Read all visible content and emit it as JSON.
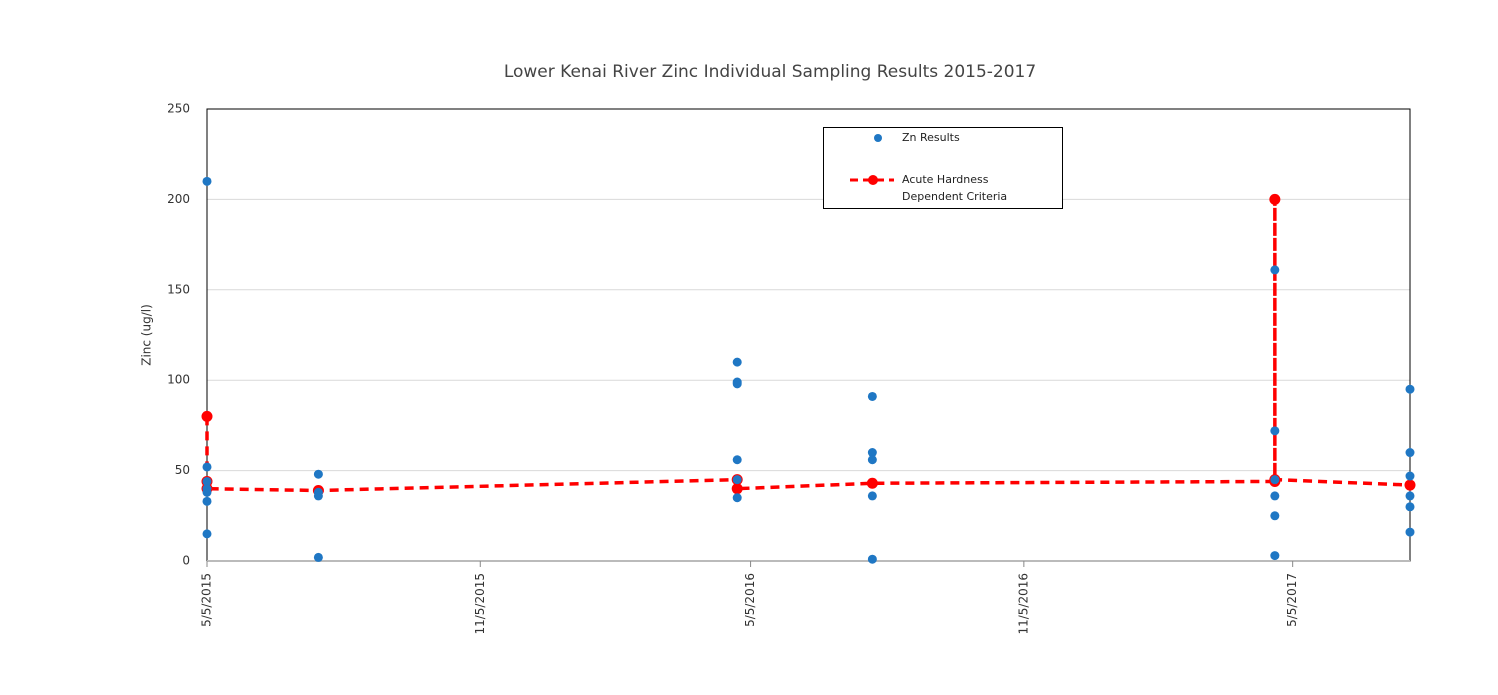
{
  "chart_data": {
    "type": "scatter",
    "title": "Lower Kenai River Zinc Individual Sampling Results 2015-2017",
    "y_label": "Zinc (ug/l)",
    "xlim": [
      "2015-05-05",
      "2017-07-23"
    ],
    "xticks": [
      {
        "value": "2015-05-05",
        "label": "5/5/2015"
      },
      {
        "value": "2015-11-05",
        "label": "11/5/2015"
      },
      {
        "value": "2016-05-05",
        "label": "5/5/2016"
      },
      {
        "value": "2016-11-05",
        "label": "11/5/2016"
      },
      {
        "value": "2017-05-05",
        "label": "5/5/2017"
      }
    ],
    "ylim": [
      0,
      250
    ],
    "yticks": [
      0,
      50,
      100,
      150,
      200,
      250
    ],
    "grid": true,
    "legend": "top-right",
    "series": [
      {
        "name": "Zn Results",
        "type": "scatter",
        "color": "#1f77c4",
        "x": [
          "2015-05-05",
          "2015-05-05",
          "2015-05-05",
          "2015-05-05",
          "2015-05-05",
          "2015-05-05",
          "2015-05-05",
          "2015-07-19",
          "2015-07-19",
          "2015-07-19",
          "2015-07-19",
          "2016-04-26",
          "2016-04-26",
          "2016-04-26",
          "2016-04-26",
          "2016-04-26",
          "2016-04-26",
          "2016-07-26",
          "2016-07-26",
          "2016-07-26",
          "2016-07-26",
          "2016-07-26",
          "2017-04-23",
          "2017-04-23",
          "2017-04-23",
          "2017-04-23",
          "2017-04-23",
          "2017-04-23",
          "2017-07-23",
          "2017-07-23",
          "2017-07-23",
          "2017-07-23",
          "2017-07-23",
          "2017-07-23"
        ],
        "values": [
          210,
          52,
          44,
          40,
          38,
          33,
          15,
          48,
          38,
          36,
          2,
          110,
          99,
          98,
          56,
          45,
          35,
          91,
          60,
          56,
          36,
          1,
          161,
          72,
          45,
          36,
          25,
          3,
          95,
          60,
          47,
          36,
          30,
          16
        ]
      },
      {
        "name": "Acute Hardness Dependent Criteria",
        "type": "line",
        "color": "#ff0000",
        "x": [
          "2015-05-05",
          "2015-05-05",
          "2015-05-05",
          "2015-07-19",
          "2016-04-26",
          "2016-04-26",
          "2016-07-26",
          "2017-04-23",
          "2017-04-23",
          "2017-04-23",
          "2017-07-23"
        ],
        "values": [
          80,
          44,
          40,
          39,
          45,
          40,
          43,
          44,
          200,
          45,
          42
        ]
      }
    ]
  }
}
